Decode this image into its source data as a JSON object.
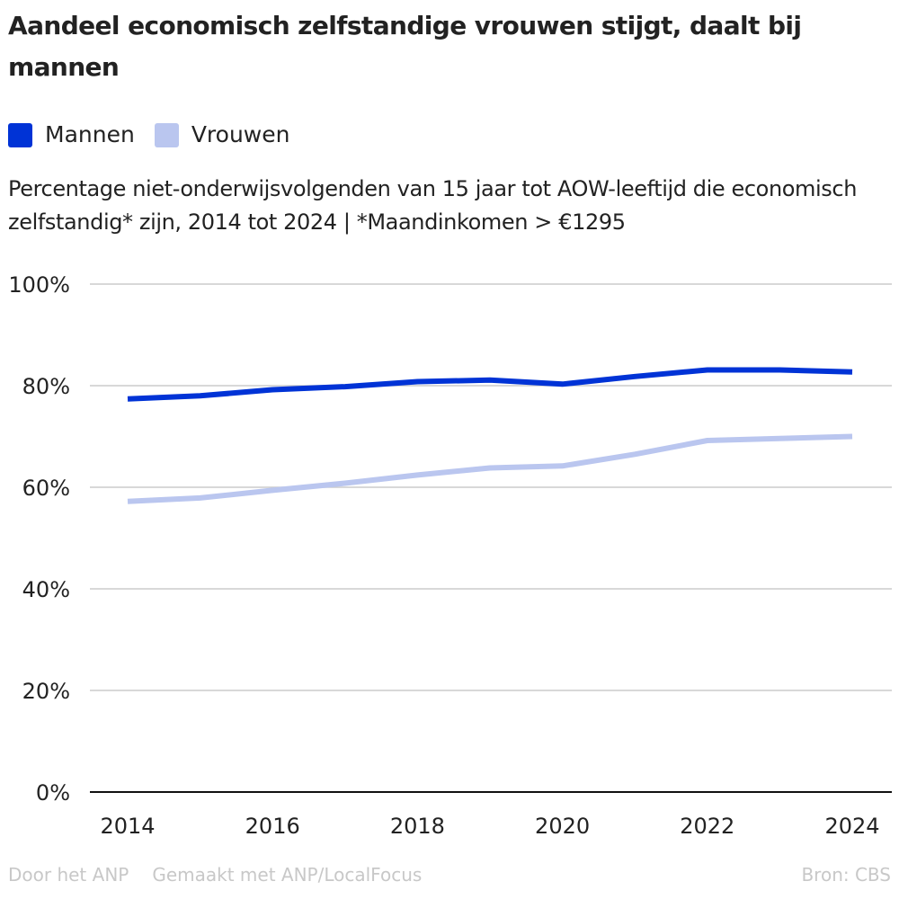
{
  "header": {
    "title": "Aandeel economisch zelfstandige vrouwen stijgt, daalt bij mannen",
    "subtitle": "Percentage niet-onderwijsvolgenden van 15 jaar tot AOW-leeftijd die economisch zelfstandig* zijn, 2014 tot 2024 | *Maandinkomen > €1295"
  },
  "legend": [
    {
      "label": "Mannen",
      "color": "#0033d6"
    },
    {
      "label": "Vrouwen",
      "color": "#bac6ef"
    }
  ],
  "footer": {
    "author": "Door het ANP",
    "made_with": "Gemaakt met ANP/LocalFocus",
    "source": "Bron:  CBS"
  },
  "chart_data": {
    "type": "line",
    "title": "Aandeel economisch zelfstandige vrouwen stijgt, daalt bij mannen",
    "xlabel": "",
    "ylabel": "",
    "x": [
      2014,
      2015,
      2016,
      2017,
      2018,
      2019,
      2020,
      2021,
      2022,
      2023,
      2024
    ],
    "xticks": [
      "2014",
      "2016",
      "2018",
      "2020",
      "2022",
      "2024"
    ],
    "xlim": [
      2014,
      2024
    ],
    "ylim": [
      0,
      100
    ],
    "yticks": [
      0,
      20,
      40,
      60,
      80,
      100
    ],
    "ytick_labels": [
      "0%",
      "20%",
      "40%",
      "60%",
      "80%",
      "100%"
    ],
    "grid": true,
    "legend_position": "top-left",
    "series": [
      {
        "name": "Mannen",
        "color": "#0033d6",
        "values": [
          77.4,
          78.0,
          79.2,
          79.8,
          80.8,
          81.1,
          80.3,
          81.8,
          83.1,
          83.1,
          82.7
        ]
      },
      {
        "name": "Vrouwen",
        "color": "#bac6ef",
        "values": [
          57.2,
          57.9,
          59.4,
          60.8,
          62.4,
          63.8,
          64.2,
          66.5,
          69.2,
          69.6,
          70.0
        ]
      }
    ]
  }
}
